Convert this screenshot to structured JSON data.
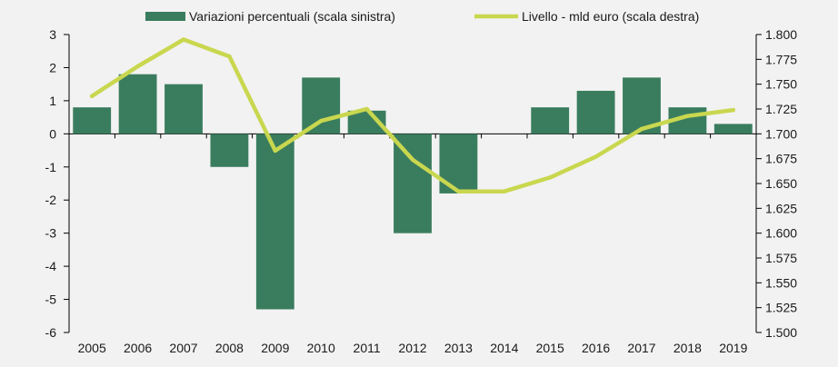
{
  "chart_data": {
    "type": "bar+line",
    "categories": [
      "2005",
      "2006",
      "2007",
      "2008",
      "2009",
      "2010",
      "2011",
      "2012",
      "2013",
      "2014",
      "2015",
      "2016",
      "2017",
      "2018",
      "2019"
    ],
    "series": [
      {
        "name": "Variazioni percentuali (scala sinistra)",
        "type": "bar",
        "axis": "left",
        "color": "#3a7d5e",
        "values": [
          0.8,
          1.8,
          1.5,
          -1.0,
          -5.3,
          1.7,
          0.7,
          -3.0,
          -1.8,
          0.0,
          0.8,
          1.3,
          1.7,
          0.8,
          0.3
        ]
      },
      {
        "name": "Livello - mld euro (scala destra)",
        "type": "line",
        "axis": "right",
        "color": "#c9d74f",
        "values": [
          1738,
          1768,
          1795,
          1778,
          1683,
          1713,
          1725,
          1674,
          1642,
          1642,
          1656,
          1677,
          1705,
          1718,
          1724
        ]
      }
    ],
    "y_left": {
      "ylim": [
        -6,
        3
      ],
      "ticks": [
        3,
        2,
        1,
        0,
        -1,
        -2,
        -3,
        -4,
        -5,
        -6
      ],
      "tick_labels": [
        "3",
        "2",
        "1",
        "0",
        "-1",
        "-2",
        "-3",
        "-4",
        "-5",
        "-6"
      ]
    },
    "y_right": {
      "ylim": [
        1500,
        1800
      ],
      "ticks": [
        1800,
        1775,
        1750,
        1725,
        1700,
        1675,
        1650,
        1625,
        1600,
        1575,
        1550,
        1525,
        1500
      ],
      "tick_labels": [
        "1.800",
        "1.775",
        "1.750",
        "1.725",
        "1.700",
        "1.675",
        "1.650",
        "1.625",
        "1.600",
        "1.575",
        "1.550",
        "1.525",
        "1.500"
      ]
    },
    "legend": {
      "position": "top",
      "items": [
        "Variazioni percentuali (scala sinistra)",
        "Livello - mld euro (scala destra)"
      ]
    },
    "grid": false
  }
}
